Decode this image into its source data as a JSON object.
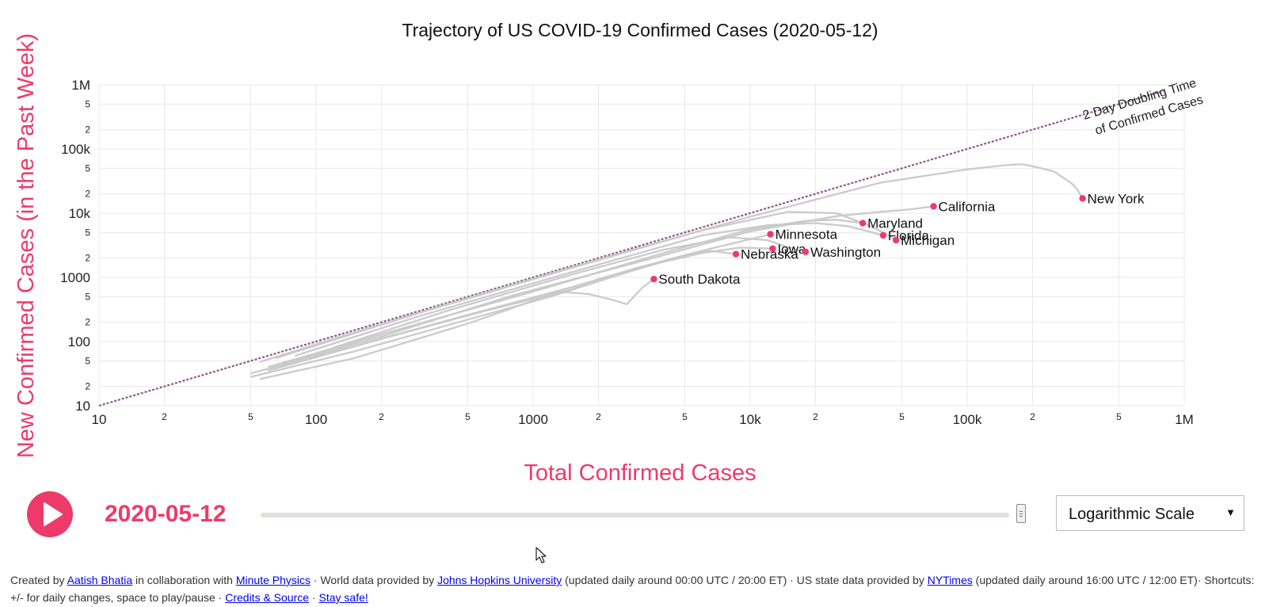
{
  "chart_data": {
    "type": "line",
    "title": "Trajectory of US COVID-19 Confirmed Cases (2020-05-12)",
    "xlabel": "Total Confirmed Cases",
    "ylabel": "New Confirmed Cases (in the Past Week)",
    "xscale": "log",
    "yscale": "log",
    "xlim": [
      10,
      1000000
    ],
    "ylim": [
      10,
      1000000
    ],
    "grid": true,
    "x_major_ticks": [
      {
        "value": 10,
        "label": "10"
      },
      {
        "value": 100,
        "label": "100"
      },
      {
        "value": 1000,
        "label": "1000"
      },
      {
        "value": 10000,
        "label": "10k"
      },
      {
        "value": 100000,
        "label": "100k"
      },
      {
        "value": 1000000,
        "label": "1M"
      }
    ],
    "y_major_ticks": [
      {
        "value": 10,
        "label": "10"
      },
      {
        "value": 100,
        "label": "100"
      },
      {
        "value": 1000,
        "label": "1000"
      },
      {
        "value": 10000,
        "label": "10k"
      },
      {
        "value": 100000,
        "label": "100k"
      },
      {
        "value": 1000000,
        "label": "1M"
      }
    ],
    "minor_tick_multipliers": [
      2,
      5
    ],
    "reference_line": {
      "label_line1": "2 Day Doubling Time",
      "label_line2": "of Confirmed Cases",
      "points": [
        [
          10,
          10
        ],
        [
          800000,
          800000
        ]
      ],
      "color": "#8b5a8c"
    },
    "line_color": "#c8c8c8",
    "marker_color": "#ee3a6a",
    "series": [
      {
        "name": "New York",
        "points": [
          [
            55,
            48
          ],
          [
            120,
            110
          ],
          [
            400,
            380
          ],
          [
            2000,
            1900
          ],
          [
            10000,
            8800
          ],
          [
            40000,
            30000
          ],
          [
            100000,
            48000
          ],
          [
            150000,
            56000
          ],
          [
            180000,
            58000
          ],
          [
            200000,
            54000
          ],
          [
            250000,
            45000
          ],
          [
            300000,
            30000
          ],
          [
            320000,
            24000
          ],
          [
            340000,
            17000
          ]
        ]
      },
      {
        "name": "California",
        "points": [
          [
            70,
            45
          ],
          [
            200,
            120
          ],
          [
            800,
            520
          ],
          [
            3000,
            1700
          ],
          [
            10000,
            5200
          ],
          [
            25000,
            9000
          ],
          [
            40000,
            10500
          ],
          [
            55000,
            11500
          ],
          [
            70000,
            12800
          ]
        ]
      },
      {
        "name": "Maryland",
        "points": [
          [
            60,
            40
          ],
          [
            200,
            130
          ],
          [
            1000,
            600
          ],
          [
            4000,
            2400
          ],
          [
            10000,
            5600
          ],
          [
            18000,
            7600
          ],
          [
            25000,
            7900
          ],
          [
            33000,
            7000
          ]
        ]
      },
      {
        "name": "Florida",
        "points": [
          [
            80,
            60
          ],
          [
            300,
            250
          ],
          [
            1500,
            1200
          ],
          [
            6000,
            4500
          ],
          [
            12000,
            6500
          ],
          [
            20000,
            7000
          ],
          [
            28000,
            6300
          ],
          [
            35000,
            5200
          ],
          [
            41000,
            4500
          ]
        ]
      },
      {
        "name": "Michigan",
        "points": [
          [
            65,
            55
          ],
          [
            300,
            280
          ],
          [
            1500,
            1400
          ],
          [
            6000,
            5400
          ],
          [
            15000,
            10500
          ],
          [
            25000,
            10000
          ],
          [
            35000,
            6500
          ],
          [
            42000,
            4800
          ],
          [
            47000,
            3800
          ]
        ]
      },
      {
        "name": "Minnesota",
        "points": [
          [
            60,
            35
          ],
          [
            200,
            110
          ],
          [
            600,
            300
          ],
          [
            1500,
            650
          ],
          [
            3000,
            1400
          ],
          [
            6000,
            2600
          ],
          [
            9000,
            3600
          ],
          [
            12400,
            4700
          ]
        ]
      },
      {
        "name": "Iowa",
        "points": [
          [
            50,
            32
          ],
          [
            150,
            85
          ],
          [
            500,
            260
          ],
          [
            1500,
            700
          ],
          [
            3000,
            1400
          ],
          [
            6000,
            2400
          ],
          [
            9000,
            2900
          ],
          [
            11000,
            2850
          ],
          [
            12700,
            2800
          ]
        ]
      },
      {
        "name": "Washington",
        "points": [
          [
            120,
            80
          ],
          [
            400,
            300
          ],
          [
            1500,
            1100
          ],
          [
            4000,
            2700
          ],
          [
            8000,
            4200
          ],
          [
            12000,
            3800
          ],
          [
            15000,
            2900
          ],
          [
            18000,
            2500
          ]
        ]
      },
      {
        "name": "Nebraska",
        "points": [
          [
            50,
            28
          ],
          [
            150,
            70
          ],
          [
            500,
            220
          ],
          [
            1200,
            500
          ],
          [
            2500,
            1100
          ],
          [
            4500,
            2000
          ],
          [
            6500,
            2600
          ],
          [
            8600,
            2300
          ]
        ]
      },
      {
        "name": "South Dakota",
        "points": [
          [
            55,
            26
          ],
          [
            150,
            55
          ],
          [
            500,
            190
          ],
          [
            900,
            380
          ],
          [
            1300,
            600
          ],
          [
            1800,
            550
          ],
          [
            2300,
            450
          ],
          [
            2700,
            380
          ],
          [
            3200,
            700
          ],
          [
            3600,
            940
          ]
        ]
      }
    ]
  },
  "controls": {
    "date": "2020-05-12",
    "slider_progress": 1.0,
    "scale_option": "Logarithmic Scale",
    "play_icon": "play-icon",
    "chevron_icon": "chevron-down-icon"
  },
  "colors": {
    "accent": "#ee3a6a",
    "reference": "#8b5a8c",
    "trajectory": "#c8c8c8"
  },
  "footer": {
    "t1": "Created by ",
    "l1": "Aatish Bhatia",
    "t2": " in collaboration with ",
    "l2": "Minute Physics",
    "t3": " · World data provided by ",
    "l3": "Johns Hopkins University",
    "t4": " (updated daily around 00:00 UTC / 20:00 ET) · US state data provided by ",
    "l4": "NYTimes",
    "t5": " (updated daily around 16:00 UTC / 12:00 ET)· Shortcuts: +/- for daily changes, space to play/pause · ",
    "l5": "Credits & Source",
    "t6": " · ",
    "l6": "Stay safe!"
  }
}
